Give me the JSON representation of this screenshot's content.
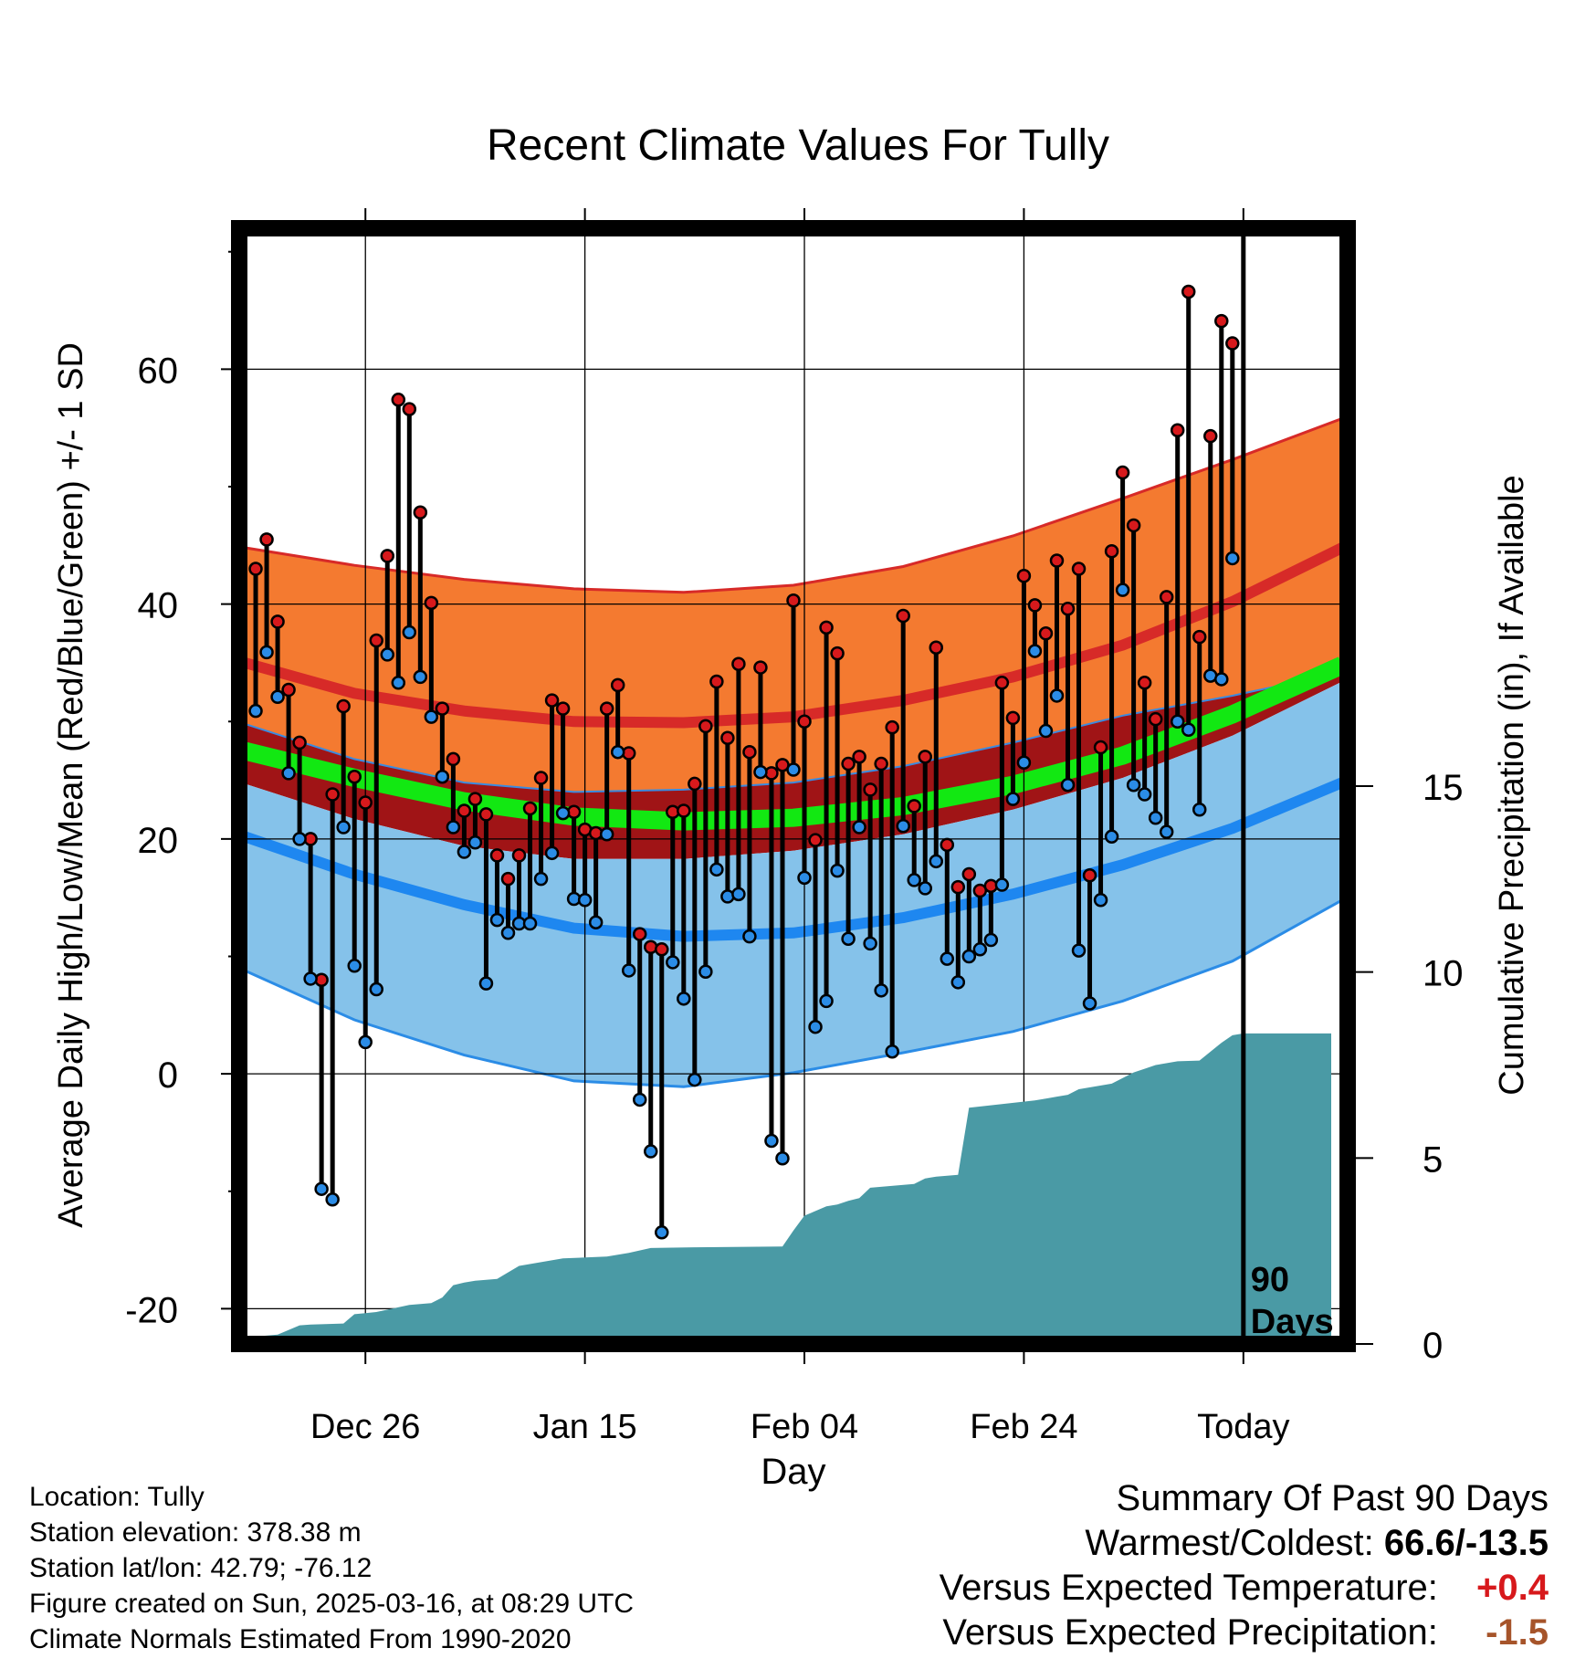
{
  "chart_data": {
    "type": "line",
    "title": "Recent Climate Values For Tully",
    "xlabel": "Day",
    "ylabel": "Average Daily High/Low/Mean (Red/Blue/Green) +/- 1 SD",
    "y2label": "Cumulative Precipitation (in), If Available",
    "ylim": [
      -23,
      72
    ],
    "y2lim": [
      0,
      30
    ],
    "xlim": [
      -9.5,
      91.5
    ],
    "x_ticks": [
      {
        "x": 2,
        "label": "Dec 26"
      },
      {
        "x": 22,
        "label": "Jan 15"
      },
      {
        "x": 42,
        "label": "Feb 04"
      },
      {
        "x": 62,
        "label": "Feb 24"
      },
      {
        "x": 82,
        "label": "Today"
      }
    ],
    "y_ticks": [
      -20,
      0,
      20,
      40,
      60
    ],
    "y2_ticks": [
      0,
      5,
      10,
      15
    ],
    "grid": true,
    "today_marker": {
      "x": 82,
      "label_line1": "90",
      "label_line2": "Days"
    },
    "normals": {
      "x": [
        -9,
        1,
        11,
        21,
        31,
        41,
        51,
        61,
        71,
        81,
        91
      ],
      "high_plus_sd": [
        44.8,
        43.3,
        42.1,
        41.3,
        41.0,
        41.6,
        43.2,
        45.8,
        49.0,
        52.3,
        55.8
      ],
      "high": [
        35.0,
        32.4,
        30.9,
        30.0,
        29.9,
        30.4,
        31.8,
        33.8,
        36.5,
        40.2,
        44.8
      ],
      "high_minus_sd": [
        29.8,
        26.8,
        24.8,
        24.0,
        24.2,
        24.8,
        26.2,
        28.2,
        30.5,
        32.2,
        34.2
      ],
      "mean": [
        27.5,
        25.2,
        23.2,
        21.9,
        21.5,
        21.8,
        22.8,
        24.6,
        27.1,
        30.6,
        34.8
      ],
      "low_plus_sd": [
        24.7,
        21.7,
        19.4,
        18.3,
        18.3,
        19.0,
        20.4,
        22.5,
        25.2,
        28.8,
        33.4
      ],
      "low": [
        20.2,
        17.0,
        14.4,
        12.4,
        11.7,
        12.0,
        13.3,
        15.3,
        17.8,
        20.9,
        24.8
      ],
      "low_minus_sd": [
        8.8,
        4.6,
        1.6,
        -0.6,
        -1.1,
        0.1,
        1.8,
        3.6,
        6.2,
        9.6,
        14.8
      ]
    },
    "series": [
      {
        "name": "High",
        "color": "#d7191c",
        "values": [
          43.0,
          45.5,
          38.5,
          32.7,
          28.2,
          20.0,
          8.0,
          23.8,
          31.3,
          25.3,
          23.1,
          36.9,
          44.1,
          57.4,
          56.6,
          47.8,
          40.1,
          31.1,
          26.8,
          22.4,
          23.4,
          22.1,
          18.6,
          16.6,
          18.6,
          22.6,
          25.2,
          31.8,
          31.1,
          22.3,
          20.8,
          20.5,
          31.1,
          33.1,
          27.3,
          11.9,
          10.8,
          10.6,
          22.3,
          22.4,
          24.7,
          29.6,
          33.4,
          28.6,
          34.9,
          27.4,
          34.6,
          25.6,
          26.3,
          40.3,
          30.0,
          19.9,
          38.0,
          35.8,
          26.4,
          27.0,
          24.2,
          26.4,
          29.5,
          39.0,
          22.8,
          27.0,
          36.3,
          19.5,
          15.9,
          17.0,
          15.6,
          16.0,
          33.3,
          30.3,
          42.4,
          39.9,
          37.5,
          43.7,
          39.6,
          43.0,
          16.9,
          27.8,
          44.5,
          51.2,
          46.7,
          33.3,
          30.2,
          40.6,
          54.8,
          66.6,
          37.2,
          54.3,
          64.1,
          62.2
        ]
      },
      {
        "name": "Low",
        "color": "#2b8ce6",
        "values": [
          30.9,
          35.9,
          32.1,
          25.6,
          20.0,
          8.1,
          -9.8,
          -10.7,
          21.0,
          9.2,
          2.7,
          7.2,
          35.7,
          33.3,
          37.6,
          33.8,
          30.4,
          25.3,
          21.0,
          18.9,
          19.7,
          7.7,
          13.1,
          12.0,
          12.8,
          12.8,
          16.6,
          18.8,
          22.2,
          14.9,
          14.8,
          12.9,
          20.4,
          27.4,
          8.8,
          -2.2,
          -6.6,
          -13.5,
          9.5,
          6.4,
          -0.5,
          8.7,
          17.4,
          15.1,
          15.3,
          11.7,
          25.7,
          -5.7,
          -7.2,
          25.9,
          16.7,
          4.0,
          6.2,
          17.3,
          11.5,
          21.0,
          11.1,
          7.1,
          1.9,
          21.1,
          16.5,
          15.8,
          18.1,
          9.8,
          7.8,
          10.0,
          10.6,
          11.4,
          16.1,
          23.4,
          26.5,
          36.0,
          29.2,
          32.2,
          24.6,
          10.5,
          6.0,
          14.8,
          20.2,
          41.2,
          24.6,
          23.8,
          21.8,
          20.6,
          30.0,
          29.3,
          22.5,
          33.9,
          33.6,
          43.9
        ]
      }
    ],
    "precipitation": {
      "name": "Cumulative Precipitation",
      "color": "#4a9aa5",
      "x": [
        -8,
        -6,
        -4,
        -3,
        0,
        1,
        2,
        3,
        6,
        8,
        9,
        10,
        11,
        12,
        14,
        16,
        20,
        24,
        26,
        28,
        32,
        40,
        41,
        42,
        44,
        45,
        46,
        47,
        48,
        52,
        53,
        54,
        56,
        57,
        60,
        63,
        64,
        65,
        66,
        67,
        70,
        72,
        73,
        74,
        76,
        78,
        80,
        81,
        82,
        90
      ],
      "values": [
        0.2,
        0.25,
        0.5,
        0.52,
        0.55,
        0.8,
        0.83,
        0.86,
        1.05,
        1.1,
        1.25,
        1.58,
        1.65,
        1.7,
        1.75,
        2.1,
        2.3,
        2.35,
        2.45,
        2.58,
        2.6,
        2.62,
        3.05,
        3.45,
        3.7,
        3.75,
        3.85,
        3.92,
        4.2,
        4.3,
        4.45,
        4.5,
        4.55,
        6.35,
        6.45,
        6.55,
        6.6,
        6.65,
        6.7,
        6.85,
        7.0,
        7.3,
        7.4,
        7.5,
        7.6,
        7.62,
        8.1,
        8.3,
        8.35,
        8.35
      ]
    }
  },
  "info_panel": {
    "location": "Location: Tully",
    "elevation": "Station elevation: 378.38 m",
    "latlon": "Station lat/lon: 42.79; -76.12",
    "created": "Figure created on Sun, 2025-03-16, at 08:29 UTC",
    "normals": "Climate Normals Estimated From 1990-2020"
  },
  "summary": {
    "title": "Summary Of Past 90 Days",
    "warmest_coldest_label": "Warmest/Coldest:",
    "warmest_coldest_value": "66.6/-13.5",
    "temp_label": "Versus Expected Temperature:",
    "temp_value": "+0.4",
    "precip_label": "Versus Expected Precipitation:",
    "precip_value": "-1.5"
  }
}
